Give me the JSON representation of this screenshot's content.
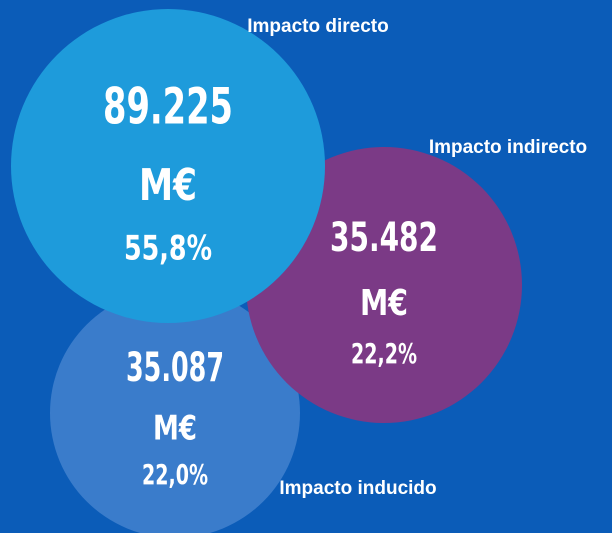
{
  "nodes": [
    {
      "label": "Impacto directo",
      "value": "89.225",
      "unit": "M€",
      "share": "55,8%"
    },
    {
      "label": "Impacto indirecto",
      "value": "35.482",
      "unit": "M€",
      "share": "22,2%"
    },
    {
      "label": "Impacto inducido",
      "value": "35.087",
      "unit": "M€",
      "share": "22,0%"
    }
  ]
}
